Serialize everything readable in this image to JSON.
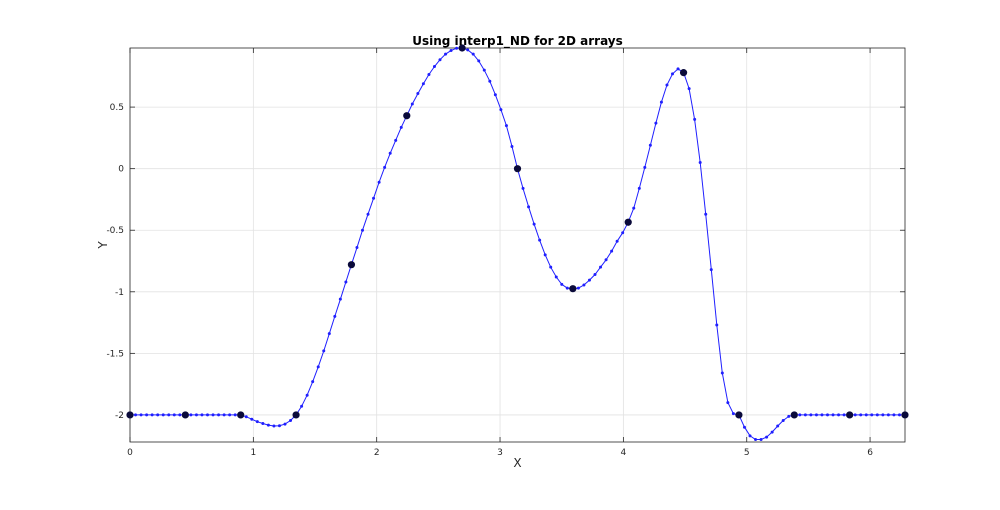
{
  "chart_data": {
    "type": "line",
    "title": "Using interp1_ND for 2D arrays",
    "xlabel": "X",
    "ylabel": "Y",
    "xlim": [
      0,
      6.2832
    ],
    "ylim": [
      -2.22,
      0.98
    ],
    "xticks": [
      0,
      1,
      2,
      3,
      4,
      5,
      6
    ],
    "yticks": [
      -2,
      -1.5,
      -1,
      -0.5,
      0,
      0.5
    ],
    "xtick_labels": [
      "0",
      "1",
      "2",
      "3",
      "4",
      "5",
      "6"
    ],
    "ytick_labels": [
      "-2",
      "-1.5",
      "-1",
      "-0.5",
      "0",
      "0.5"
    ],
    "grid": true,
    "series": [
      {
        "role": "sample-points",
        "color": "#0a0a3a",
        "marker": "circle",
        "x": [
          0,
          0.4488,
          0.8976,
          1.3464,
          1.7952,
          2.244,
          2.6928,
          3.1416,
          3.5904,
          4.0392,
          4.488,
          4.9368,
          5.3856,
          5.8344,
          6.2832
        ],
        "y": [
          -2,
          -2,
          -2,
          -2,
          -0.78,
          0.43,
          0.98,
          0,
          -0.975,
          -0.435,
          0.78,
          -2,
          -2,
          -2,
          -2
        ]
      },
      {
        "role": "interpolated-curve",
        "color": "#1f1fff",
        "marker": "dot",
        "x": [
          0,
          0.0449,
          0.0898,
          0.1346,
          0.1795,
          0.2244,
          0.2693,
          0.3142,
          0.359,
          0.4039,
          0.4488,
          0.4937,
          0.5386,
          0.5834,
          0.6283,
          0.6732,
          0.7181,
          0.763,
          0.8078,
          0.8527,
          0.8976,
          0.9425,
          0.9874,
          1.0322,
          1.0771,
          1.122,
          1.1669,
          1.2118,
          1.2566,
          1.3015,
          1.3464,
          1.3913,
          1.4362,
          1.481,
          1.5259,
          1.5708,
          1.6157,
          1.6606,
          1.7054,
          1.7503,
          1.7952,
          1.8401,
          1.885,
          1.9298,
          1.9747,
          2.0196,
          2.0645,
          2.1094,
          2.1542,
          2.1991,
          2.244,
          2.2889,
          2.3338,
          2.3786,
          2.4235,
          2.4684,
          2.5133,
          2.5582,
          2.603,
          2.6479,
          2.6928,
          2.7377,
          2.7826,
          2.8274,
          2.8723,
          2.9172,
          2.9621,
          3.007,
          3.0518,
          3.0967,
          3.1416,
          3.1865,
          3.2314,
          3.2762,
          3.3211,
          3.366,
          3.4109,
          3.4558,
          3.5006,
          3.5455,
          3.5904,
          3.6353,
          3.6802,
          3.725,
          3.7699,
          3.8148,
          3.8597,
          3.9046,
          3.9494,
          3.9943,
          4.0392,
          4.0841,
          4.129,
          4.1738,
          4.2187,
          4.2636,
          4.3085,
          4.3534,
          4.3982,
          4.4431,
          4.488,
          4.5329,
          4.5778,
          4.6226,
          4.6675,
          4.7124,
          4.7573,
          4.8022,
          4.847,
          4.8919,
          4.9368,
          4.9817,
          5.0266,
          5.0714,
          5.1163,
          5.1612,
          5.2061,
          5.251,
          5.2958,
          5.3407,
          5.3856,
          5.4305,
          5.4754,
          5.5202,
          5.5651,
          5.61,
          5.6549,
          5.6998,
          5.7446,
          5.7895,
          5.8344,
          5.8793,
          5.9242,
          5.969,
          6.0139,
          6.0588,
          6.1037,
          6.1486,
          6.1934,
          6.2383,
          6.2832
        ],
        "y": [
          -2,
          -2,
          -2,
          -2,
          -2,
          -2,
          -2,
          -2,
          -2,
          -2,
          -2,
          -2,
          -2,
          -2,
          -2,
          -2,
          -2,
          -2,
          -2,
          -2,
          -2,
          -2.015,
          -2.035,
          -2.055,
          -2.07,
          -2.083,
          -2.09,
          -2.088,
          -2.075,
          -2.045,
          -2,
          -1.93,
          -1.84,
          -1.73,
          -1.61,
          -1.48,
          -1.34,
          -1.2,
          -1.06,
          -0.92,
          -0.78,
          -0.64,
          -0.5,
          -0.37,
          -0.24,
          -0.11,
          0.01,
          0.125,
          0.23,
          0.335,
          0.43,
          0.525,
          0.61,
          0.69,
          0.765,
          0.83,
          0.885,
          0.93,
          0.96,
          0.978,
          0.98,
          0.965,
          0.93,
          0.875,
          0.8,
          0.71,
          0.6,
          0.48,
          0.35,
          0.18,
          0,
          -0.16,
          -0.31,
          -0.45,
          -0.58,
          -0.7,
          -0.8,
          -0.88,
          -0.94,
          -0.97,
          -0.975,
          -0.97,
          -0.945,
          -0.905,
          -0.86,
          -0.8,
          -0.74,
          -0.67,
          -0.59,
          -0.52,
          -0.435,
          -0.32,
          -0.16,
          0.01,
          0.19,
          0.37,
          0.54,
          0.68,
          0.77,
          0.81,
          0.78,
          0.65,
          0.4,
          0.05,
          -0.37,
          -0.82,
          -1.27,
          -1.66,
          -1.9,
          -1.99,
          -2,
          -2.1,
          -2.17,
          -2.2,
          -2.2,
          -2.18,
          -2.14,
          -2.09,
          -2.045,
          -2.012,
          -2,
          -2,
          -2,
          -2,
          -2,
          -2,
          -2,
          -2,
          -2,
          -2,
          -2,
          -2,
          -2,
          -2,
          -2,
          -2,
          -2,
          -2,
          -2,
          -2,
          -2
        ]
      }
    ]
  }
}
